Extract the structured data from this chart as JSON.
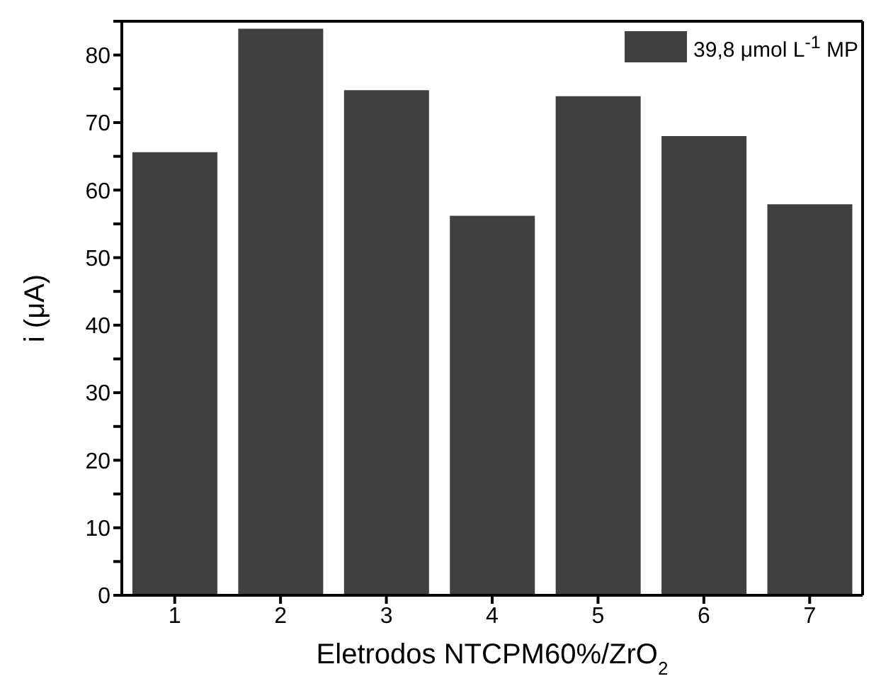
{
  "chart_data": {
    "type": "bar",
    "xlabel": "Eletrodos NTCPM60%/ZrO$_{2}$",
    "ylabel": "i (μA)",
    "categories": [
      "1",
      "2",
      "3",
      "4",
      "5",
      "6",
      "7"
    ],
    "series": [
      {
        "name": "39,8 μmol L$^{-1}$ MP",
        "color": "#404040",
        "values": [
          65.6,
          83.9,
          74.8,
          56.2,
          73.9,
          68.0,
          57.9
        ]
      }
    ],
    "ylim": [
      0,
      85
    ],
    "yticks": [
      0,
      {
        "value": 5,
        "label": null
      },
      10,
      {
        "value": 15,
        "label": null
      },
      20,
      {
        "value": 25,
        "label": null
      },
      30,
      {
        "value": 35,
        "label": null
      },
      40,
      {
        "value": 45,
        "label": null
      },
      50,
      {
        "value": 55,
        "label": null
      },
      60,
      {
        "value": 65,
        "label": null
      },
      70,
      {
        "value": 75,
        "label": null
      },
      80,
      {
        "value": 85,
        "label": null
      }
    ],
    "legend": "top right",
    "grid": false
  }
}
